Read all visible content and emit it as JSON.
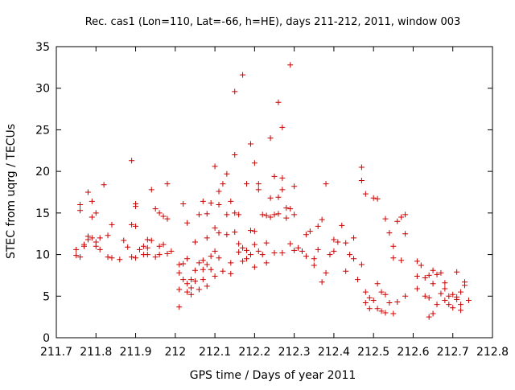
{
  "chart_data": {
    "type": "scatter",
    "title": "Rec. cas1 (Lon=110, Lat=-66, h=HE), days 211-212, 2011, window 003",
    "xlabel": "GPS time / Days of year 2011",
    "ylabel": "STEC from uqrg / TECUs",
    "xlim": [
      211.7,
      212.8
    ],
    "ylim": [
      0,
      35
    ],
    "x_ticks": [
      "211.7",
      "211.8",
      "211.9",
      "212",
      "212.1",
      "212.2",
      "212.3",
      "212.4",
      "212.5",
      "212.6",
      "212.7",
      "212.8"
    ],
    "y_ticks": [
      "0",
      "5",
      "10",
      "15",
      "20",
      "25",
      "30",
      "35"
    ],
    "grid": false,
    "marker": "+",
    "marker_color": "#cc0000",
    "points": [
      [
        211.75,
        10.6
      ],
      [
        211.75,
        9.9
      ],
      [
        211.76,
        16.0
      ],
      [
        211.76,
        15.3
      ],
      [
        211.76,
        9.7
      ],
      [
        211.77,
        11.0
      ],
      [
        211.77,
        11.2
      ],
      [
        211.78,
        12.2
      ],
      [
        211.78,
        17.5
      ],
      [
        211.78,
        11.8
      ],
      [
        211.79,
        14.5
      ],
      [
        211.79,
        16.4
      ],
      [
        211.79,
        12.0
      ],
      [
        211.8,
        15.0
      ],
      [
        211.8,
        11.5
      ],
      [
        211.8,
        11.0
      ],
      [
        211.81,
        12.0
      ],
      [
        211.81,
        10.6
      ],
      [
        211.82,
        18.4
      ],
      [
        211.83,
        12.3
      ],
      [
        211.83,
        9.7
      ],
      [
        211.84,
        13.6
      ],
      [
        211.84,
        9.6
      ],
      [
        211.86,
        9.4
      ],
      [
        211.87,
        11.7
      ],
      [
        211.88,
        10.9
      ],
      [
        211.89,
        21.3
      ],
      [
        211.89,
        13.6
      ],
      [
        211.89,
        9.7
      ],
      [
        211.9,
        16.1
      ],
      [
        211.9,
        15.8
      ],
      [
        211.9,
        13.4
      ],
      [
        211.9,
        9.6
      ],
      [
        211.91,
        10.6
      ],
      [
        211.92,
        10.0
      ],
      [
        211.92,
        11.0
      ],
      [
        211.93,
        10.8
      ],
      [
        211.93,
        10.0
      ],
      [
        211.93,
        11.8
      ],
      [
        211.94,
        17.8
      ],
      [
        211.94,
        11.7
      ],
      [
        211.95,
        15.5
      ],
      [
        211.95,
        9.7
      ],
      [
        211.96,
        15.0
      ],
      [
        211.96,
        10.0
      ],
      [
        211.96,
        11.0
      ],
      [
        211.97,
        14.6
      ],
      [
        211.97,
        11.2
      ],
      [
        211.98,
        10.1
      ],
      [
        211.98,
        14.3
      ],
      [
        211.98,
        18.5
      ],
      [
        211.99,
        10.4
      ],
      [
        212.01,
        3.7
      ],
      [
        212.01,
        8.8
      ],
      [
        212.01,
        7.8
      ],
      [
        212.01,
        5.8
      ],
      [
        212.02,
        16.1
      ],
      [
        212.02,
        8.9
      ],
      [
        212.02,
        7.0
      ],
      [
        212.03,
        6.5
      ],
      [
        212.03,
        5.5
      ],
      [
        212.03,
        13.8
      ],
      [
        212.03,
        9.5
      ],
      [
        212.04,
        6.0
      ],
      [
        212.04,
        5.2
      ],
      [
        212.04,
        7.0
      ],
      [
        212.05,
        8.1
      ],
      [
        212.05,
        6.8
      ],
      [
        212.05,
        11.5
      ],
      [
        212.06,
        5.8
      ],
      [
        212.06,
        9.0
      ],
      [
        212.06,
        14.8
      ],
      [
        212.07,
        8.2
      ],
      [
        212.07,
        9.3
      ],
      [
        212.07,
        16.4
      ],
      [
        212.07,
        7.0
      ],
      [
        212.08,
        8.8
      ],
      [
        212.08,
        6.2
      ],
      [
        212.08,
        12.0
      ],
      [
        212.08,
        14.9
      ],
      [
        212.09,
        9.8
      ],
      [
        212.09,
        16.2
      ],
      [
        212.09,
        8.2
      ],
      [
        212.1,
        20.6
      ],
      [
        212.1,
        13.2
      ],
      [
        212.1,
        10.4
      ],
      [
        212.1,
        7.4
      ],
      [
        212.11,
        9.6
      ],
      [
        212.11,
        12.6
      ],
      [
        212.11,
        16.0
      ],
      [
        212.11,
        17.6
      ],
      [
        212.12,
        8.0
      ],
      [
        212.12,
        18.5
      ],
      [
        212.13,
        19.7
      ],
      [
        212.13,
        14.8
      ],
      [
        212.13,
        12.4
      ],
      [
        212.14,
        9.0
      ],
      [
        212.14,
        16.4
      ],
      [
        212.14,
        7.7
      ],
      [
        212.15,
        29.6
      ],
      [
        212.15,
        22.0
      ],
      [
        212.15,
        15.0
      ],
      [
        212.15,
        12.7
      ],
      [
        212.16,
        11.3
      ],
      [
        212.16,
        10.3
      ],
      [
        212.16,
        14.8
      ],
      [
        212.17,
        31.6
      ],
      [
        212.17,
        10.8
      ],
      [
        212.17,
        9.2
      ],
      [
        212.18,
        18.5
      ],
      [
        212.18,
        10.5
      ],
      [
        212.18,
        9.5
      ],
      [
        212.19,
        23.3
      ],
      [
        212.19,
        12.9
      ],
      [
        212.19,
        10.0
      ],
      [
        212.2,
        21.0
      ],
      [
        212.2,
        12.8
      ],
      [
        212.2,
        8.5
      ],
      [
        212.2,
        11.2
      ],
      [
        212.21,
        18.5
      ],
      [
        212.21,
        17.8
      ],
      [
        212.21,
        10.4
      ],
      [
        212.22,
        14.8
      ],
      [
        212.22,
        10.0
      ],
      [
        212.23,
        14.7
      ],
      [
        212.23,
        11.4
      ],
      [
        212.23,
        9.0
      ],
      [
        212.24,
        24.0
      ],
      [
        212.24,
        16.8
      ],
      [
        212.24,
        14.5
      ],
      [
        212.25,
        19.4
      ],
      [
        212.25,
        14.8
      ],
      [
        212.25,
        10.2
      ],
      [
        212.26,
        28.3
      ],
      [
        212.26,
        16.9
      ],
      [
        212.26,
        14.9
      ],
      [
        212.27,
        25.3
      ],
      [
        212.27,
        19.2
      ],
      [
        212.27,
        17.8
      ],
      [
        212.27,
        10.2
      ],
      [
        212.28,
        15.6
      ],
      [
        212.28,
        14.4
      ],
      [
        212.29,
        32.8
      ],
      [
        212.29,
        15.5
      ],
      [
        212.29,
        11.3
      ],
      [
        212.3,
        18.2
      ],
      [
        212.3,
        10.5
      ],
      [
        212.3,
        14.8
      ],
      [
        212.31,
        10.8
      ],
      [
        212.32,
        10.4
      ],
      [
        212.33,
        12.4
      ],
      [
        212.33,
        9.8
      ],
      [
        212.34,
        12.8
      ],
      [
        212.35,
        9.5
      ],
      [
        212.35,
        8.7
      ],
      [
        212.36,
        13.4
      ],
      [
        212.36,
        10.6
      ],
      [
        212.37,
        14.2
      ],
      [
        212.37,
        6.7
      ],
      [
        212.38,
        18.5
      ],
      [
        212.38,
        7.8
      ],
      [
        212.39,
        10.0
      ],
      [
        212.4,
        11.8
      ],
      [
        212.4,
        10.4
      ],
      [
        212.41,
        11.5
      ],
      [
        212.42,
        13.5
      ],
      [
        212.43,
        8.0
      ],
      [
        212.43,
        11.4
      ],
      [
        212.44,
        10.0
      ],
      [
        212.45,
        12.0
      ],
      [
        212.45,
        9.5
      ],
      [
        212.46,
        7.0
      ],
      [
        212.47,
        20.5
      ],
      [
        212.47,
        18.9
      ],
      [
        212.47,
        8.8
      ],
      [
        212.48,
        17.3
      ],
      [
        212.48,
        5.5
      ],
      [
        212.48,
        4.2
      ],
      [
        212.49,
        4.8
      ],
      [
        212.49,
        3.5
      ],
      [
        212.5,
        16.8
      ],
      [
        212.5,
        4.5
      ],
      [
        212.51,
        16.7
      ],
      [
        212.51,
        6.5
      ],
      [
        212.51,
        3.5
      ],
      [
        212.52,
        5.5
      ],
      [
        212.52,
        3.2
      ],
      [
        212.53,
        14.3
      ],
      [
        212.53,
        5.2
      ],
      [
        212.53,
        3.0
      ],
      [
        212.54,
        12.6
      ],
      [
        212.54,
        4.2
      ],
      [
        212.55,
        9.6
      ],
      [
        212.55,
        2.9
      ],
      [
        212.55,
        11.0
      ],
      [
        212.56,
        4.3
      ],
      [
        212.56,
        14.0
      ],
      [
        212.57,
        9.3
      ],
      [
        212.57,
        14.5
      ],
      [
        212.58,
        14.8
      ],
      [
        212.58,
        5.0
      ],
      [
        212.58,
        12.5
      ],
      [
        212.61,
        9.2
      ],
      [
        212.61,
        7.4
      ],
      [
        212.61,
        5.9
      ],
      [
        212.62,
        8.7
      ],
      [
        212.63,
        7.2
      ],
      [
        212.63,
        5.0
      ],
      [
        212.64,
        2.5
      ],
      [
        212.64,
        7.5
      ],
      [
        212.64,
        4.8
      ],
      [
        212.65,
        8.1
      ],
      [
        212.65,
        6.5
      ],
      [
        212.65,
        2.9
      ],
      [
        212.66,
        7.6
      ],
      [
        212.66,
        4.0
      ],
      [
        212.67,
        7.8
      ],
      [
        212.67,
        5.3
      ],
      [
        212.68,
        4.5
      ],
      [
        212.68,
        6.6
      ],
      [
        212.68,
        5.9
      ],
      [
        212.69,
        5.0
      ],
      [
        212.69,
        4.0
      ],
      [
        212.7,
        5.2
      ],
      [
        212.7,
        3.6
      ],
      [
        212.71,
        4.6
      ],
      [
        212.71,
        4.9
      ],
      [
        212.71,
        7.9
      ],
      [
        212.72,
        5.5
      ],
      [
        212.72,
        3.3
      ],
      [
        212.72,
        4.0
      ],
      [
        212.73,
        6.3
      ],
      [
        212.73,
        6.7
      ],
      [
        212.74,
        4.5
      ]
    ]
  }
}
